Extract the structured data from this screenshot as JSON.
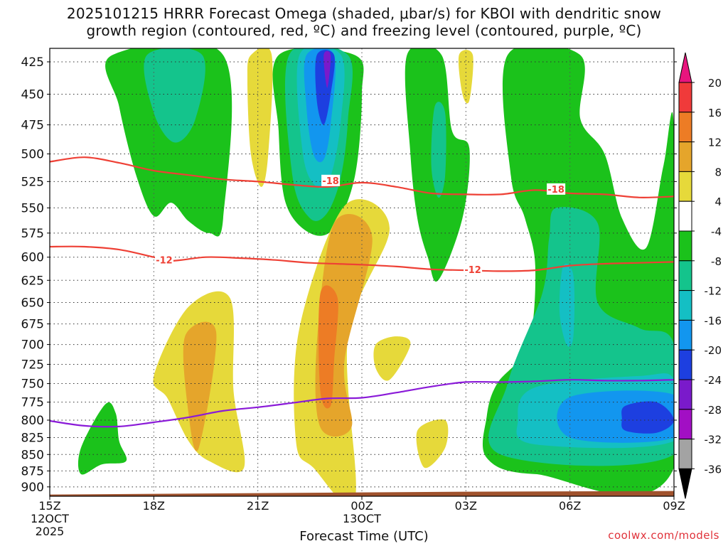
{
  "header": {
    "title_line1": "2025101215 HRRR Forecast Omega (shaded, μbar/s) for KBOI with dendritic snow",
    "title_line2": "growth region (contoured, red, ºC) and freezing level (contoured, purple, ºC)"
  },
  "credit": "coolwx.com/models",
  "chart_data": {
    "type": "heatmap",
    "title": "2025101215 HRRR Forecast Omega (shaded, μbar/s) for KBOI with dendritic snow growth region (contoured, red, ºC) and freezing level (contoured, purple, ºC)",
    "xlabel": "Forecast Time (UTC)",
    "ylabel": "",
    "y_axis": {
      "scale": "pressure (hPa), inverted",
      "ylim": [
        915,
        415
      ],
      "ticks": [
        "425",
        "450",
        "475",
        "500",
        "525",
        "550",
        "575",
        "600",
        "625",
        "650",
        "675",
        "700",
        "725",
        "750",
        "775",
        "800",
        "825",
        "850",
        "875",
        "900"
      ]
    },
    "x_axis": {
      "xlim_hours_from_15Z": [
        0,
        18
      ],
      "ticks": [
        {
          "hour": 0,
          "label": "15Z",
          "sub1": "12OCT",
          "sub2": "2025"
        },
        {
          "hour": 3,
          "label": "18Z",
          "sub1": "",
          "sub2": ""
        },
        {
          "hour": 6,
          "label": "21Z",
          "sub1": "",
          "sub2": ""
        },
        {
          "hour": 9,
          "label": "00Z",
          "sub1": "13OCT",
          "sub2": ""
        },
        {
          "hour": 12,
          "label": "03Z",
          "sub1": "",
          "sub2": ""
        },
        {
          "hour": 15,
          "label": "06Z",
          "sub1": "",
          "sub2": ""
        },
        {
          "hour": 18,
          "label": "09Z",
          "sub1": "",
          "sub2": ""
        }
      ]
    },
    "grid": true,
    "colorbar": {
      "labels": [
        "20",
        "16",
        "12",
        "8",
        "4",
        "-4",
        "-8",
        "-12",
        "-16",
        "-20",
        "-24",
        "-28",
        "-32",
        "-36"
      ],
      "bins": [
        {
          "from": 20,
          "to": null,
          "color": "#e8157e"
        },
        {
          "from": 16,
          "to": 20,
          "color": "#f03a3a"
        },
        {
          "from": 12,
          "to": 16,
          "color": "#ed7c25"
        },
        {
          "from": 8,
          "to": 12,
          "color": "#e5a52b"
        },
        {
          "from": 4,
          "to": 8,
          "color": "#e6d93a"
        },
        {
          "from": -4,
          "to": 4,
          "color": "#ffffff"
        },
        {
          "from": -8,
          "to": -4,
          "color": "#1bc21b"
        },
        {
          "from": -12,
          "to": -8,
          "color": "#14c48c"
        },
        {
          "from": -16,
          "to": -12,
          "color": "#14bfc4"
        },
        {
          "from": -20,
          "to": -16,
          "color": "#1296ef"
        },
        {
          "from": -24,
          "to": -20,
          "color": "#1d3fe0"
        },
        {
          "from": -28,
          "to": -24,
          "color": "#7a1acb"
        },
        {
          "from": -32,
          "to": -28,
          "color": "#a20fc4"
        },
        {
          "from": -36,
          "to": -32,
          "color": "#a3a3a3"
        },
        {
          "from": null,
          "to": -36,
          "color": "#000000"
        }
      ]
    },
    "contours": [
      {
        "name": "dendritic -18C",
        "color": "#ee4035",
        "label": "-18",
        "points": [
          [
            0,
            507
          ],
          [
            1,
            503
          ],
          [
            2,
            508
          ],
          [
            3,
            515
          ],
          [
            4,
            519
          ],
          [
            5,
            523
          ],
          [
            6,
            525
          ],
          [
            7,
            528
          ],
          [
            8,
            530
          ],
          [
            9,
            526
          ],
          [
            10,
            530
          ],
          [
            11,
            536
          ],
          [
            12,
            537
          ],
          [
            13,
            537
          ],
          [
            14,
            533
          ],
          [
            15,
            536
          ],
          [
            16,
            537
          ],
          [
            17,
            540
          ],
          [
            18,
            539
          ]
        ]
      },
      {
        "name": "dendritic -12C",
        "color": "#ee4035",
        "label": "-12",
        "points": [
          [
            0,
            589
          ],
          [
            1,
            589
          ],
          [
            2,
            592
          ],
          [
            3,
            600
          ],
          [
            3.5,
            604
          ],
          [
            4.5,
            600
          ],
          [
            5.5,
            601
          ],
          [
            6.5,
            603
          ],
          [
            7.5,
            606
          ],
          [
            9,
            608
          ],
          [
            10,
            610
          ],
          [
            11,
            613
          ],
          [
            12,
            614
          ],
          [
            13,
            615
          ],
          [
            14,
            614
          ],
          [
            15,
            609
          ],
          [
            16,
            607
          ],
          [
            17,
            606
          ],
          [
            18,
            605
          ]
        ]
      },
      {
        "name": "freezing level 0C",
        "color": "#8a1ad8",
        "label": "",
        "points": [
          [
            0,
            801
          ],
          [
            1,
            808
          ],
          [
            2,
            809
          ],
          [
            3,
            803
          ],
          [
            4,
            796
          ],
          [
            5,
            787
          ],
          [
            6,
            782
          ],
          [
            7,
            776
          ],
          [
            8,
            770
          ],
          [
            9,
            769
          ],
          [
            10,
            762
          ],
          [
            11,
            754
          ],
          [
            12,
            748
          ],
          [
            13,
            748
          ],
          [
            14,
            747
          ],
          [
            15,
            745
          ],
          [
            16,
            746
          ],
          [
            17,
            746
          ],
          [
            18,
            745
          ]
        ]
      }
    ],
    "terrain": {
      "color": "#a0522d",
      "top_hpa": 910
    },
    "shaded_regions": [
      {
        "value_bin": "-8..-4",
        "color": "#1bc21b",
        "points": [
          [
            1.8,
            420
          ],
          [
            5,
            420
          ],
          [
            5,
            560
          ],
          [
            4.6,
            575
          ],
          [
            4,
            563
          ],
          [
            3.5,
            545
          ],
          [
            3,
            558
          ],
          [
            2.5,
            520
          ],
          [
            2,
            460
          ]
        ]
      },
      {
        "value_bin": "-12..-8",
        "color": "#14c48c",
        "points": [
          [
            2.8,
            420
          ],
          [
            4.4,
            420
          ],
          [
            4.2,
            470
          ],
          [
            3.6,
            490
          ],
          [
            3,
            465
          ]
        ]
      },
      {
        "value_bin": "4..8",
        "color": "#e6d93a",
        "points": [
          [
            5.8,
            420
          ],
          [
            6.4,
            420
          ],
          [
            6.3,
            500
          ],
          [
            6.1,
            530
          ],
          [
            5.8,
            500
          ],
          [
            5.7,
            440
          ]
        ]
      },
      {
        "value_bin": "-8..-4",
        "color": "#1bc21b",
        "points": [
          [
            6.6,
            420
          ],
          [
            8.8,
            420
          ],
          [
            9,
            450
          ],
          [
            8.8,
            520
          ],
          [
            8.2,
            570
          ],
          [
            7.5,
            575
          ],
          [
            6.8,
            545
          ],
          [
            6.6,
            480
          ]
        ]
      },
      {
        "value_bin": "-12..-8",
        "color": "#14c48c",
        "points": [
          [
            6.9,
            420
          ],
          [
            8.6,
            420
          ],
          [
            8.6,
            470
          ],
          [
            8.4,
            520
          ],
          [
            8,
            555
          ],
          [
            7.5,
            560
          ],
          [
            7,
            520
          ]
        ]
      },
      {
        "value_bin": "-16..-12",
        "color": "#14bfc4",
        "points": [
          [
            7.2,
            420
          ],
          [
            8.4,
            420
          ],
          [
            8.4,
            470
          ],
          [
            8.1,
            520
          ],
          [
            7.7,
            530
          ],
          [
            7.3,
            500
          ]
        ]
      },
      {
        "value_bin": "-20..-16",
        "color": "#1296ef",
        "points": [
          [
            7.4,
            420
          ],
          [
            8.2,
            420
          ],
          [
            8.1,
            475
          ],
          [
            7.9,
            505
          ],
          [
            7.6,
            500
          ],
          [
            7.4,
            460
          ]
        ]
      },
      {
        "value_bin": "-24..-20",
        "color": "#1d3fe0",
        "points": [
          [
            7.7,
            420
          ],
          [
            8.2,
            420
          ],
          [
            8.1,
            450
          ],
          [
            7.9,
            475
          ],
          [
            7.7,
            455
          ]
        ]
      },
      {
        "value_bin": "-28..-24",
        "color": "#7a1acb",
        "points": [
          [
            7.9,
            420
          ],
          [
            8.1,
            420
          ],
          [
            8,
            445
          ]
        ]
      },
      {
        "value_bin": "4..8",
        "color": "#e6d93a",
        "points": [
          [
            11.8,
            420
          ],
          [
            12.2,
            420
          ],
          [
            12.1,
            455
          ],
          [
            11.9,
            450
          ]
        ]
      },
      {
        "value_bin": "-8..-4",
        "color": "#1bc21b",
        "points": [
          [
            10.3,
            420
          ],
          [
            11.3,
            420
          ],
          [
            11.6,
            480
          ],
          [
            12.1,
            495
          ],
          [
            11.9,
            560
          ],
          [
            11.2,
            625
          ],
          [
            10.9,
            600
          ],
          [
            10.6,
            560
          ],
          [
            10.4,
            500
          ]
        ]
      },
      {
        "value_bin": "-12..-8",
        "color": "#14c48c",
        "points": [
          [
            11.1,
            460
          ],
          [
            11.4,
            465
          ],
          [
            11.4,
            520
          ],
          [
            11.2,
            540
          ],
          [
            11,
            510
          ]
        ]
      },
      {
        "value_bin": "-8..-4",
        "color": "#1bc21b",
        "points": [
          [
            13.2,
            420
          ],
          [
            15.3,
            420
          ],
          [
            15.3,
            470
          ],
          [
            16,
            500
          ],
          [
            16.5,
            560
          ],
          [
            17.2,
            590
          ],
          [
            17.7,
            510
          ],
          [
            18,
            480
          ],
          [
            18,
            870
          ],
          [
            14,
            880
          ],
          [
            12.6,
            855
          ],
          [
            12.6,
            795
          ],
          [
            12.9,
            750
          ],
          [
            13.8,
            700
          ],
          [
            14,
            610
          ],
          [
            13.7,
            560
          ],
          [
            13.3,
            520
          ]
        ]
      },
      {
        "value_bin": "-12..-8",
        "color": "#14c48c",
        "points": [
          [
            14.6,
            550
          ],
          [
            15.8,
            565
          ],
          [
            15.8,
            650
          ],
          [
            17,
            680
          ],
          [
            18,
            700
          ],
          [
            18,
            850
          ],
          [
            13,
            850
          ],
          [
            13.2,
            750
          ],
          [
            14.2,
            640
          ],
          [
            14.4,
            580
          ]
        ]
      },
      {
        "value_bin": "-16..-12",
        "color": "#14bfc4",
        "points": [
          [
            14.8,
            610
          ],
          [
            15.1,
            620
          ],
          [
            15.1,
            690
          ],
          [
            14.9,
            700
          ],
          [
            14.7,
            660
          ]
        ]
      },
      {
        "value_bin": "-16..-12",
        "color": "#14bfc4",
        "points": [
          [
            14,
            755
          ],
          [
            17,
            740
          ],
          [
            18,
            745
          ],
          [
            18,
            830
          ],
          [
            14,
            835
          ],
          [
            13.5,
            800
          ]
        ]
      },
      {
        "value_bin": "-20..-16",
        "color": "#1296ef",
        "points": [
          [
            15,
            768
          ],
          [
            18,
            765
          ],
          [
            18,
            825
          ],
          [
            15,
            825
          ]
        ]
      },
      {
        "value_bin": "-24..-20",
        "color": "#1d3fe0",
        "points": [
          [
            16.6,
            780
          ],
          [
            17.5,
            775
          ],
          [
            18,
            800
          ],
          [
            17.5,
            818
          ],
          [
            16.6,
            815
          ],
          [
            16.5,
            798
          ]
        ]
      },
      {
        "value_bin": "-8..-4",
        "color": "#1bc21b",
        "points": [
          [
            0.9,
            840
          ],
          [
            1.6,
            778
          ],
          [
            1.9,
            790
          ],
          [
            2,
            830
          ],
          [
            2.2,
            860
          ],
          [
            1.5,
            865
          ],
          [
            0.9,
            880
          ]
        ]
      },
      {
        "value_bin": "4..8",
        "color": "#e6d93a",
        "points": [
          [
            3,
            740
          ],
          [
            4,
            655
          ],
          [
            5.2,
            645
          ],
          [
            5.3,
            760
          ],
          [
            5.6,
            870
          ],
          [
            4.6,
            860
          ],
          [
            4,
            830
          ],
          [
            3.4,
            770
          ]
        ]
      },
      {
        "value_bin": "8..12",
        "color": "#e5a52b",
        "points": [
          [
            3.9,
            690
          ],
          [
            4.8,
            685
          ],
          [
            4.3,
            840
          ],
          [
            4,
            790
          ]
        ]
      },
      {
        "value_bin": "4..8",
        "color": "#e6d93a",
        "points": [
          [
            8.5,
            548
          ],
          [
            9.8,
            570
          ],
          [
            8.6,
            690
          ],
          [
            8.8,
            920
          ],
          [
            7.6,
            870
          ],
          [
            7.1,
            830
          ],
          [
            7.2,
            680
          ]
        ]
      },
      {
        "value_bin": "8..12",
        "color": "#e5a52b",
        "points": [
          [
            8.2,
            565
          ],
          [
            9.3,
            580
          ],
          [
            8.5,
            720
          ],
          [
            8.7,
            810
          ],
          [
            7.8,
            810
          ],
          [
            7.7,
            700
          ]
        ]
      },
      {
        "value_bin": "12..16",
        "color": "#ed7c25",
        "points": [
          [
            7.8,
            640
          ],
          [
            8.3,
            645
          ],
          [
            8.2,
            720
          ],
          [
            8.1,
            780
          ],
          [
            7.8,
            760
          ]
        ]
      },
      {
        "value_bin": "4..8",
        "color": "#e6d93a",
        "points": [
          [
            9.4,
            700
          ],
          [
            10,
            690
          ],
          [
            10.4,
            700
          ],
          [
            9.8,
            745
          ],
          [
            9.4,
            730
          ]
        ]
      },
      {
        "value_bin": "4..8",
        "color": "#e6d93a",
        "points": [
          [
            10.6,
            815
          ],
          [
            11.4,
            800
          ],
          [
            11.4,
            840
          ],
          [
            10.8,
            870
          ]
        ]
      }
    ]
  }
}
